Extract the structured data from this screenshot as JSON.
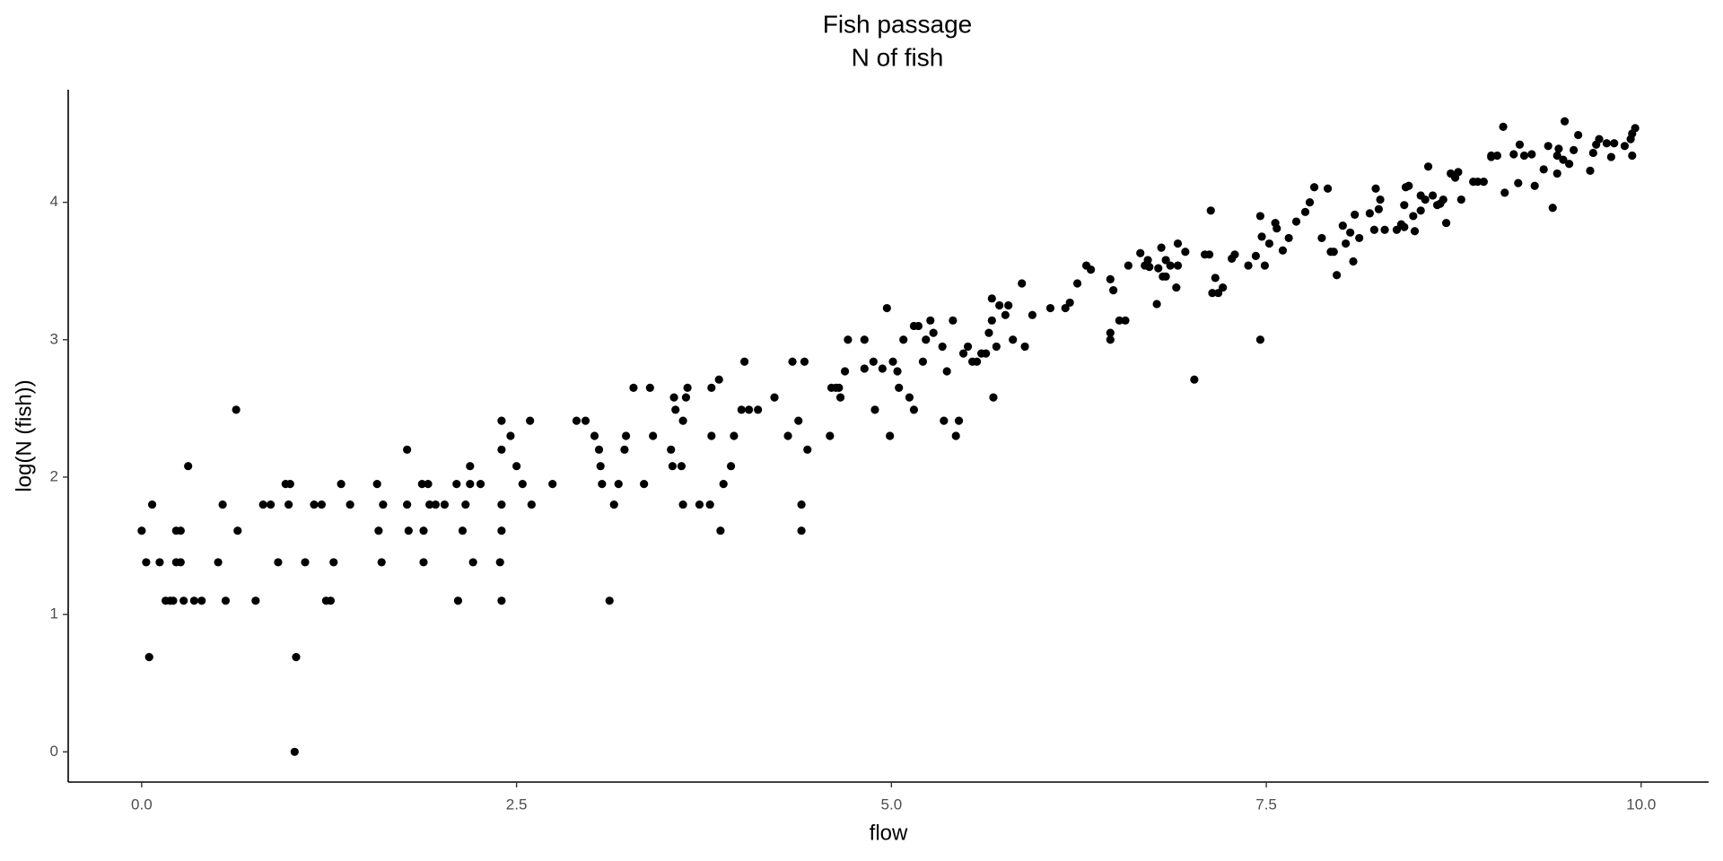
{
  "chart_data": {
    "type": "scatter",
    "title": "Fish passage",
    "subtitle": "N of fish",
    "xlabel": "flow",
    "ylabel": "log(N (fish))",
    "color": "#000000",
    "xlim": [
      -0.49,
      10.45
    ],
    "ylim": [
      -0.22,
      4.82
    ],
    "xticks": [
      {
        "value": 0,
        "label": "0.0"
      },
      2.5,
      {
        "value": 5,
        "label": "5.0"
      },
      7.5,
      {
        "value": 10,
        "label": "10.0"
      }
    ],
    "yticks": [
      0,
      1,
      2,
      3,
      4
    ],
    "grid": false,
    "x": [
      0,
      0.03,
      0.05,
      0.07,
      0.12,
      0.16,
      0.19,
      0.21,
      0.23,
      0.23,
      0.26,
      0.26,
      0.28,
      0.31,
      0.35,
      0.4,
      0.51,
      0.54,
      0.56,
      0.63,
      0.64,
      0.76,
      0.81,
      0.86,
      0.91,
      0.96,
      0.99,
      0.98,
      1.02,
      1.03,
      1.09,
      1.15,
      1.2,
      1.23,
      1.26,
      1.28,
      1.33,
      1.39,
      1.57,
      1.58,
      1.6,
      1.61,
      1.77,
      1.77,
      1.78,
      1.87,
      1.88,
      1.88,
      1.91,
      1.92,
      1.96,
      2.02,
      2.1,
      2.11,
      2.14,
      2.16,
      2.19,
      2.19,
      2.21,
      2.26,
      2.39,
      2.4,
      2.4,
      2.4,
      2.4,
      2.4,
      2.46,
      2.5,
      2.54,
      2.59,
      2.6,
      2.74,
      2.9,
      2.96,
      3.02,
      3.05,
      3.06,
      3.07,
      3.12,
      3.15,
      3.18,
      3.22,
      3.23,
      3.28,
      3.35,
      3.39,
      3.41,
      3.53,
      3.54,
      3.55,
      3.56,
      3.6,
      3.61,
      3.61,
      3.63,
      3.64,
      3.72,
      3.79,
      3.8,
      3.8,
      3.85,
      3.86,
      3.88,
      3.93,
      3.95,
      4.0,
      4.02,
      4.05,
      4.11,
      4.22,
      4.31,
      4.34,
      4.38,
      4.4,
      4.4,
      4.42,
      4.44,
      4.59,
      4.6,
      4.63,
      4.65,
      4.66,
      4.69,
      4.71,
      4.82,
      4.82,
      4.88,
      4.89,
      4.94,
      4.97,
      4.99,
      5.01,
      5.04,
      5.05,
      5.08,
      5.12,
      5.15,
      5.15,
      5.18,
      5.21,
      5.23,
      5.26,
      5.28,
      5.34,
      5.35,
      5.37,
      5.41,
      5.43,
      5.45,
      5.48,
      5.51,
      5.54,
      5.57,
      5.6,
      5.63,
      5.65,
      5.67,
      5.67,
      5.68,
      5.7,
      5.72,
      5.76,
      5.78,
      5.81,
      5.87,
      5.89,
      5.94,
      6.06,
      6.16,
      6.19,
      6.24,
      6.3,
      6.33,
      6.46,
      6.46,
      6.46,
      6.48,
      6.52,
      6.56,
      6.58,
      6.66,
      6.69,
      6.71,
      6.72,
      6.77,
      6.78,
      6.8,
      6.81,
      6.83,
      6.83,
      6.86,
      6.9,
      6.91,
      6.91,
      6.96,
      7.02,
      7.09,
      7.12,
      7.13,
      7.14,
      7.16,
      7.18,
      7.21,
      7.27,
      7.29,
      7.38,
      7.43,
      7.46,
      7.46,
      7.47,
      7.49,
      7.52,
      7.56,
      7.57,
      7.61,
      7.65,
      7.7,
      7.76,
      7.79,
      7.82,
      7.87,
      7.91,
      7.93,
      7.95,
      7.97,
      8.01,
      8.03,
      8.06,
      8.08,
      8.09,
      8.12,
      8.19,
      8.22,
      8.23,
      8.25,
      8.26,
      8.29,
      8.37,
      8.4,
      8.42,
      8.42,
      8.43,
      8.45,
      8.48,
      8.49,
      8.53,
      8.53,
      8.56,
      8.58,
      8.61,
      8.64,
      8.66,
      8.68,
      8.7,
      8.73,
      8.76,
      8.78,
      8.8,
      8.88,
      8.91,
      8.95,
      9.0,
      9.0,
      9.04,
      9.08,
      9.09,
      9.15,
      9.18,
      9.19,
      9.22,
      9.27,
      9.29,
      9.35,
      9.38,
      9.41,
      9.44,
      9.44,
      9.45,
      9.48,
      9.49,
      9.52,
      9.55,
      9.58,
      9.66,
      9.68,
      9.7,
      9.72,
      9.77,
      9.8,
      9.82,
      9.89,
      9.93,
      9.94,
      9.94,
      9.96
    ],
    "values": [
      1.61,
      1.38,
      0.69,
      1.8,
      1.38,
      1.1,
      1.1,
      1.1,
      1.61,
      1.38,
      1.61,
      1.38,
      1.1,
      2.08,
      1.1,
      1.1,
      1.38,
      1.8,
      1.1,
      2.49,
      1.61,
      1.1,
      1.8,
      1.8,
      1.38,
      1.95,
      1.95,
      1.8,
      0,
      0.69,
      1.38,
      1.8,
      1.8,
      1.1,
      1.1,
      1.38,
      1.95,
      1.8,
      1.95,
      1.61,
      1.38,
      1.8,
      2.2,
      1.8,
      1.61,
      1.95,
      1.61,
      1.38,
      1.95,
      1.8,
      1.8,
      1.8,
      1.95,
      1.1,
      1.61,
      1.8,
      2.08,
      1.95,
      1.38,
      1.95,
      1.38,
      1.61,
      1.8,
      2.41,
      2.2,
      1.1,
      2.3,
      2.08,
      1.95,
      2.41,
      1.8,
      1.95,
      2.41,
      2.41,
      2.3,
      2.2,
      2.08,
      1.95,
      1.1,
      1.8,
      1.95,
      2.2,
      2.3,
      2.65,
      1.95,
      2.65,
      2.3,
      2.2,
      2.08,
      2.58,
      2.49,
      2.08,
      1.8,
      2.41,
      2.58,
      2.65,
      1.8,
      1.8,
      2.3,
      2.65,
      2.71,
      1.61,
      1.95,
      2.08,
      2.3,
      2.49,
      2.84,
      2.49,
      2.49,
      2.58,
      2.3,
      2.84,
      2.41,
      1.8,
      1.61,
      2.84,
      2.2,
      2.3,
      2.65,
      2.65,
      2.65,
      2.58,
      2.77,
      3.0,
      2.79,
      3.0,
      2.84,
      2.49,
      2.79,
      3.23,
      2.3,
      2.84,
      2.77,
      2.65,
      3.0,
      2.58,
      3.1,
      2.49,
      3.1,
      2.84,
      3.0,
      3.14,
      3.05,
      2.95,
      2.41,
      2.77,
      3.14,
      2.3,
      2.41,
      2.9,
      2.95,
      2.84,
      2.84,
      2.9,
      2.9,
      3.05,
      3.14,
      3.3,
      2.58,
      2.95,
      3.25,
      3.18,
      3.25,
      3.0,
      3.41,
      2.95,
      3.18,
      3.23,
      3.23,
      3.27,
      3.41,
      3.54,
      3.51,
      3.44,
      3.05,
      3.0,
      3.36,
      3.14,
      3.14,
      3.54,
      3.63,
      3.54,
      3.58,
      3.53,
      3.26,
      3.52,
      3.67,
      3.46,
      3.58,
      3.46,
      3.54,
      3.38,
      3.7,
      3.54,
      3.64,
      2.71,
      3.62,
      3.62,
      3.94,
      3.34,
      3.45,
      3.34,
      3.38,
      3.59,
      3.62,
      3.54,
      3.61,
      3.0,
      3.9,
      3.75,
      3.54,
      3.7,
      3.85,
      3.81,
      3.65,
      3.74,
      3.86,
      3.93,
      4.0,
      4.11,
      3.74,
      4.1,
      3.64,
      3.64,
      3.47,
      3.83,
      3.7,
      3.78,
      3.57,
      3.91,
      3.74,
      3.92,
      3.8,
      4.1,
      3.95,
      4.02,
      3.8,
      3.8,
      3.84,
      3.98,
      3.82,
      4.11,
      4.12,
      3.9,
      3.79,
      3.94,
      4.05,
      4.02,
      4.26,
      4.05,
      3.98,
      3.99,
      4.02,
      3.85,
      4.21,
      4.18,
      4.22,
      4.02,
      4.15,
      4.15,
      4.15,
      4.33,
      4.34,
      4.34,
      4.55,
      4.07,
      4.35,
      4.14,
      4.42,
      4.34,
      4.35,
      4.12,
      4.24,
      4.41,
      3.96,
      4.21,
      4.34,
      4.39,
      4.31,
      4.59,
      4.28,
      4.38,
      4.49,
      4.23,
      4.36,
      4.42,
      4.46,
      4.43,
      4.33,
      4.43,
      4.41,
      4.46,
      4.5,
      4.34,
      4.54
    ]
  }
}
